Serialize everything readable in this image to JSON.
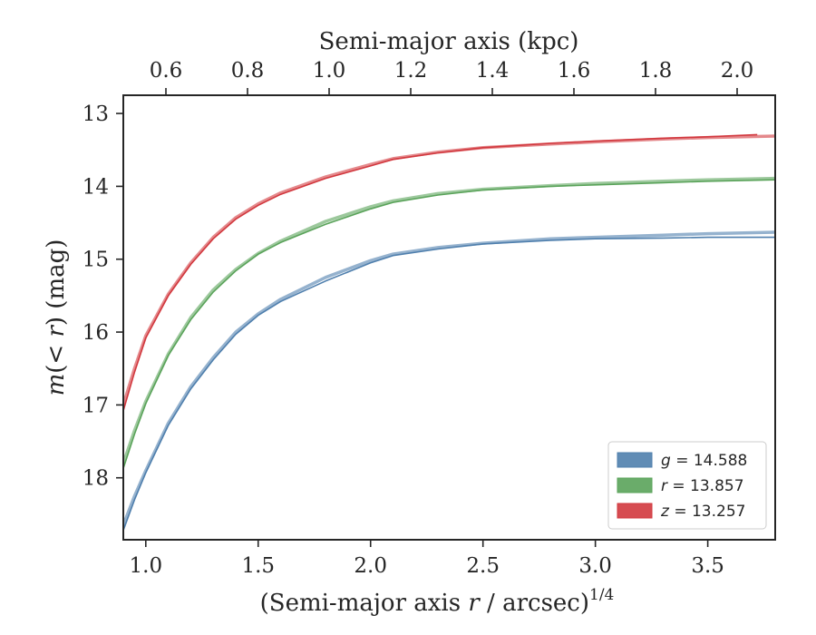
{
  "chart_data": {
    "type": "line",
    "xlabel": "(Semi-major axis r / arcsec)",
    "xlabel_italic": "r",
    "xlabel_exponent": "1/4",
    "ylabel": "m(< r) (mag)",
    "top_xlabel": "Semi-major axis (kpc)",
    "xlim": [
      0.9,
      3.8
    ],
    "ylim": [
      18.85,
      12.75
    ],
    "y_inverted": true,
    "x_ticks": [
      "1.0",
      "1.5",
      "2.0",
      "2.5",
      "3.0",
      "3.5"
    ],
    "y_ticks": [
      "13",
      "14",
      "15",
      "16",
      "17",
      "18"
    ],
    "top_ticks": [
      "0.6",
      "0.8",
      "1.0",
      "1.2",
      "1.4",
      "1.6",
      "1.8",
      "2.0"
    ],
    "grid": false,
    "legend_position": "lower-right",
    "legend": [
      {
        "label": "g = 14.588",
        "var": "g",
        "value": "14.588",
        "color": "#4f7fad"
      },
      {
        "label": "r = 13.857",
        "var": "r",
        "value": "13.857",
        "color": "#5aa35a"
      },
      {
        "label": "z = 13.257",
        "var": "z",
        "value": "13.257",
        "color": "#d2383e"
      }
    ],
    "series": [
      {
        "band": "g",
        "color": "#4f7fad",
        "model": {
          "x": [
            0.9,
            0.95,
            1.0,
            1.1,
            1.2,
            1.3,
            1.4,
            1.5,
            1.6,
            1.8,
            2.0,
            2.1,
            2.3,
            2.5,
            2.8,
            3.0,
            3.3,
            3.5,
            3.8
          ],
          "y": [
            18.65,
            18.25,
            17.9,
            17.25,
            16.75,
            16.35,
            16.0,
            15.75,
            15.55,
            15.25,
            15.02,
            14.93,
            14.84,
            14.78,
            14.72,
            14.7,
            14.67,
            14.65,
            14.63
          ]
        },
        "data": {
          "x": [
            0.9,
            0.95,
            1.0,
            1.1,
            1.2,
            1.3,
            1.4,
            1.5,
            1.6,
            1.8,
            2.0,
            2.1,
            2.3,
            2.5,
            2.8,
            3.0,
            3.3,
            3.5,
            3.8
          ],
          "y": [
            18.72,
            18.3,
            17.93,
            17.28,
            16.78,
            16.38,
            16.03,
            15.77,
            15.58,
            15.3,
            15.05,
            14.95,
            14.86,
            14.79,
            14.74,
            14.72,
            14.71,
            14.7,
            14.7
          ]
        }
      },
      {
        "band": "r",
        "color": "#5aa35a",
        "model": {
          "x": [
            0.9,
            0.95,
            1.0,
            1.1,
            1.2,
            1.3,
            1.4,
            1.5,
            1.6,
            1.8,
            2.0,
            2.1,
            2.3,
            2.5,
            2.8,
            3.0,
            3.3,
            3.5,
            3.8
          ],
          "y": [
            17.8,
            17.35,
            16.95,
            16.3,
            15.8,
            15.42,
            15.14,
            14.92,
            14.75,
            14.48,
            14.28,
            14.2,
            14.1,
            14.04,
            13.99,
            13.96,
            13.93,
            13.91,
            13.89
          ]
        },
        "data": {
          "x": [
            0.9,
            0.95,
            1.0,
            1.1,
            1.2,
            1.3,
            1.4,
            1.5,
            1.6,
            1.8,
            2.0,
            2.1,
            2.3,
            2.5,
            2.8,
            3.0,
            3.3,
            3.5,
            3.8
          ],
          "y": [
            17.87,
            17.4,
            16.98,
            16.32,
            15.83,
            15.45,
            15.16,
            14.93,
            14.77,
            14.52,
            14.31,
            14.22,
            14.12,
            14.05,
            14.0,
            13.98,
            13.95,
            13.93,
            13.91
          ]
        }
      },
      {
        "band": "z",
        "color": "#d2383e",
        "model": {
          "x": [
            0.9,
            0.95,
            1.0,
            1.1,
            1.2,
            1.3,
            1.4,
            1.5,
            1.6,
            1.8,
            2.0,
            2.1,
            2.3,
            2.5,
            2.8,
            3.0,
            3.3,
            3.5,
            3.8
          ],
          "y": [
            17.0,
            16.5,
            16.05,
            15.48,
            15.05,
            14.7,
            14.43,
            14.24,
            14.09,
            13.87,
            13.7,
            13.62,
            13.53,
            13.47,
            13.42,
            13.39,
            13.35,
            13.33,
            13.31
          ]
        },
        "data": {
          "x": [
            0.9,
            0.95,
            1.0,
            1.1,
            1.2,
            1.3,
            1.4,
            1.5,
            1.6,
            1.8,
            2.0,
            2.1,
            2.3,
            2.5,
            2.8,
            3.0,
            3.3,
            3.5,
            3.72
          ],
          "y": [
            17.08,
            16.55,
            16.08,
            15.5,
            15.07,
            14.72,
            14.45,
            14.26,
            14.11,
            13.89,
            13.72,
            13.63,
            13.54,
            13.47,
            13.41,
            13.38,
            13.34,
            13.32,
            13.29
          ]
        }
      }
    ]
  }
}
